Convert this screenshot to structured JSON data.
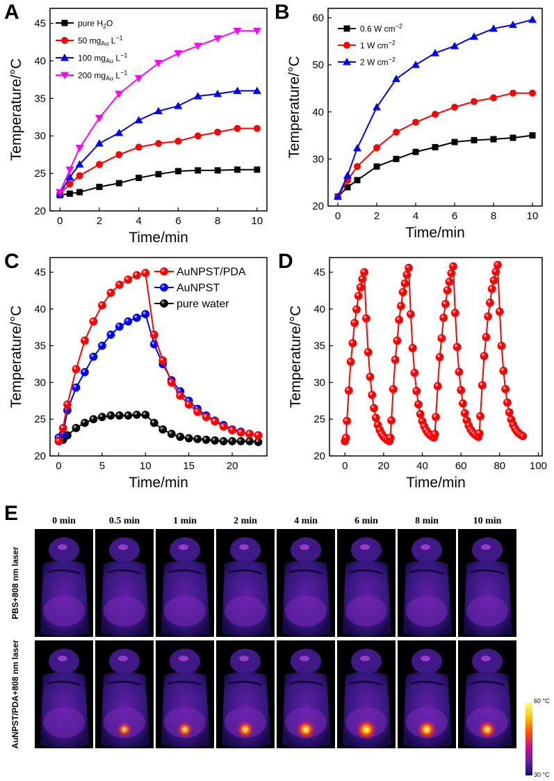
{
  "figure": {
    "panel_letters": [
      "A",
      "B",
      "C",
      "D",
      "E"
    ]
  },
  "chart_data": [
    {
      "panel": "A",
      "type": "line",
      "xlabel": "Time/min",
      "ylabel": "Temperature/°C",
      "xlim": [
        -0.5,
        10.5
      ],
      "ylim": [
        20,
        47
      ],
      "xticks": [
        0,
        2,
        4,
        6,
        8,
        10
      ],
      "yticks": [
        20,
        25,
        30,
        35,
        40,
        45
      ],
      "legend_position": "top-left",
      "x": [
        0,
        0.5,
        1,
        2,
        3,
        4,
        5,
        6,
        7,
        8,
        9,
        10
      ],
      "series": [
        {
          "name": "pure H2O",
          "legend_main": "pure H",
          "legend_sub": "2",
          "legend_tail": "O",
          "color": "#000000",
          "marker": "square",
          "values": [
            22.1,
            22.3,
            22.5,
            23.2,
            23.7,
            24.4,
            24.9,
            25.3,
            25.4,
            25.4,
            25.5,
            25.5
          ]
        },
        {
          "name": "50 mgAu L−1",
          "legend_main": "50 mg",
          "legend_sub": "Au",
          "legend_tail": " L",
          "legend_sup": "−1",
          "color": "#ff0000",
          "marker": "circle",
          "values": [
            22.3,
            23.6,
            24.7,
            26.2,
            27.5,
            28.5,
            29.0,
            29.3,
            30.0,
            30.5,
            31.0,
            31.0
          ]
        },
        {
          "name": "100 mgAu L−1",
          "legend_main": "100 mg",
          "legend_sub": "Au",
          "legend_tail": " L",
          "legend_sup": "−1",
          "color": "#0000ff",
          "marker": "triangle-up",
          "values": [
            22.3,
            24.5,
            26.2,
            29.0,
            30.4,
            32.1,
            33.3,
            34.0,
            35.3,
            35.6,
            36.0,
            36.0
          ]
        },
        {
          "name": "200 mgAu L−1",
          "legend_main": "200 mg",
          "legend_sub": "Au",
          "legend_tail": " L",
          "legend_sup": "−1",
          "color": "#ff00ff",
          "marker": "triangle-down",
          "values": [
            22.5,
            25.5,
            28.4,
            32.4,
            35.6,
            37.7,
            39.7,
            41.0,
            42.0,
            43.0,
            44.0,
            44.0
          ]
        }
      ]
    },
    {
      "panel": "B",
      "type": "line",
      "xlabel": "Time/min",
      "ylabel": "Temperature/°C",
      "xlim": [
        -0.5,
        10.5
      ],
      "ylim": [
        20,
        62
      ],
      "xticks": [
        0,
        2,
        4,
        6,
        8,
        10
      ],
      "yticks": [
        20,
        30,
        40,
        50,
        60
      ],
      "legend_position": "top-left",
      "x": [
        0,
        0.5,
        1,
        2,
        3,
        4,
        5,
        6,
        7,
        8,
        9,
        10
      ],
      "series": [
        {
          "name": "0.6 W cm−2",
          "legend_main": "0.6 W cm",
          "legend_sup": "−2",
          "color": "#000000",
          "marker": "square",
          "values": [
            22.0,
            24.0,
            25.5,
            28.4,
            30.0,
            31.5,
            32.5,
            33.6,
            34.0,
            34.2,
            34.5,
            35.0
          ]
        },
        {
          "name": "1 W cm−2",
          "legend_main": "1 W cm",
          "legend_sup": "−2",
          "color": "#ff0000",
          "marker": "circle",
          "values": [
            22.0,
            25.5,
            28.4,
            32.4,
            35.7,
            37.8,
            39.5,
            41.0,
            42.2,
            43.0,
            44.0,
            44.0
          ]
        },
        {
          "name": "2 W cm−2",
          "legend_main": "2 W cm",
          "legend_sup": "−2",
          "color": "#0000ff",
          "marker": "triangle-up",
          "values": [
            22.0,
            26.5,
            32.3,
            41.0,
            47.0,
            50.0,
            52.5,
            54.0,
            56.0,
            57.7,
            58.5,
            59.6
          ]
        }
      ]
    },
    {
      "panel": "C",
      "type": "line",
      "xlabel": "Time/min",
      "ylabel": "Temperature/°C",
      "xlim": [
        -1,
        24
      ],
      "ylim": [
        20,
        47
      ],
      "xticks": [
        0,
        5,
        10,
        15,
        20
      ],
      "yticks": [
        20,
        25,
        30,
        35,
        40,
        45
      ],
      "legend_position": "top-right",
      "x": [
        0,
        0.5,
        1,
        2,
        3,
        4,
        5,
        6,
        7,
        8,
        9,
        10,
        11,
        12,
        13,
        14,
        15,
        16,
        17,
        18,
        19,
        20,
        21,
        22,
        23
      ],
      "series": [
        {
          "name": "AuNPST/PDA",
          "color": "#ff0000",
          "marker": "circle",
          "values": [
            22.0,
            23.8,
            27.0,
            31.8,
            35.7,
            38.3,
            40.5,
            42.2,
            43.3,
            44.0,
            44.6,
            44.9,
            36.5,
            33.0,
            30.0,
            28.2,
            27.0,
            26.0,
            25.3,
            24.7,
            24.0,
            23.5,
            23.2,
            23.0,
            22.8
          ]
        },
        {
          "name": "AuNPST",
          "color": "#0000ff",
          "marker": "circle",
          "values": [
            22.5,
            23.0,
            26.2,
            29.3,
            31.4,
            33.5,
            35.0,
            36.5,
            37.6,
            38.3,
            38.8,
            39.3,
            35.2,
            32.5,
            30.3,
            28.8,
            27.5,
            26.4,
            25.5,
            24.8,
            24.2,
            23.6,
            23.3,
            23.0,
            22.8
          ]
        },
        {
          "name": "pure water",
          "color": "#000000",
          "marker": "circle",
          "values": [
            22.0,
            22.2,
            22.8,
            23.8,
            24.5,
            25.0,
            25.3,
            25.5,
            25.5,
            25.5,
            25.6,
            25.6,
            24.5,
            23.6,
            23.0,
            22.6,
            22.4,
            22.3,
            22.2,
            22.1,
            22.0,
            22.0,
            22.0,
            22.0,
            21.9
          ]
        }
      ]
    },
    {
      "panel": "D",
      "type": "line",
      "xlabel": "Time/min",
      "ylabel": "Temperature/°C",
      "xlim": [
        -8,
        102
      ],
      "ylim": [
        20,
        47
      ],
      "xticks": [
        0,
        20,
        40,
        60,
        80,
        100
      ],
      "yticks": [
        20,
        25,
        30,
        35,
        40,
        45
      ],
      "cycles": 4,
      "cycle_start_times": [
        0,
        23,
        46,
        69
      ],
      "heating_duration": 10,
      "cooling_duration": 13,
      "start_temp": 22.0,
      "peak_temps": [
        45.0,
        45.6,
        45.8,
        46.0
      ],
      "end_temps": [
        22.0,
        22.5,
        22.6,
        22.7
      ],
      "series": [
        {
          "name": "",
          "color": "#ff0000",
          "marker": "circle"
        }
      ]
    }
  ],
  "thermal_images": {
    "time_labels": [
      "0  min",
      "0.5  min",
      "1  min",
      "2  min",
      "4  min",
      "6  min",
      "8  min",
      "10  min"
    ],
    "rows": [
      {
        "label": "PBS+808 nm laser",
        "hotspot_intensity": [
          0,
          0,
          0,
          0,
          0,
          0,
          0,
          0
        ]
      },
      {
        "label": "AuNPST/PDA+808 nm laser",
        "hotspot_intensity": [
          0,
          0.55,
          0.65,
          0.75,
          0.9,
          1.0,
          0.9,
          0.8
        ]
      }
    ],
    "colorbar": {
      "max_label": "60 °C",
      "min_label": "30 °C",
      "colors": [
        "#ffff80",
        "#ffc000",
        "#ff5000",
        "#d0108a",
        "#6a1aa8",
        "#10106a"
      ]
    }
  }
}
